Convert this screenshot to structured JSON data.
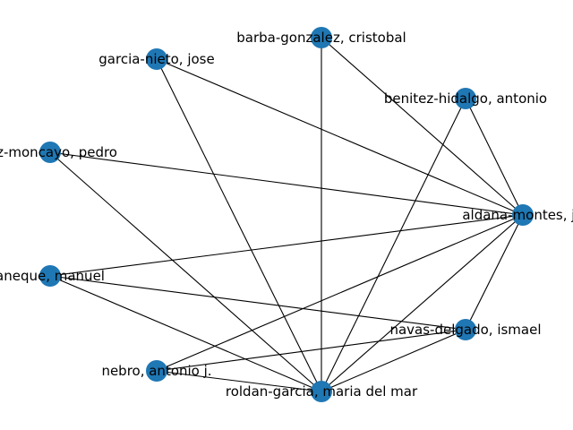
{
  "graph": {
    "node_color": "#1f77b4",
    "edge_color": "#000000",
    "nodes": [
      {
        "id": "barba",
        "label": "barba-gonzalez, cristobal"
      },
      {
        "id": "garcia",
        "label": "garcia-nieto, jose"
      },
      {
        "id": "benitez",
        "label": "benitez-hidalgo, antonio"
      },
      {
        "id": "perez",
        "label": "rez-moncayo, pedro"
      },
      {
        "id": "aldana",
        "label": "aldana-montes, jo"
      },
      {
        "id": "roldan_m",
        "label": "aneque, manuel"
      },
      {
        "id": "navas",
        "label": "navas-delgado, ismael"
      },
      {
        "id": "nebro",
        "label": "nebro, antonio j."
      },
      {
        "id": "roldan",
        "label": "roldan-garcia, maria del mar"
      }
    ],
    "edges": [
      [
        "barba",
        "aldana"
      ],
      [
        "barba",
        "roldan"
      ],
      [
        "garcia",
        "aldana"
      ],
      [
        "garcia",
        "roldan"
      ],
      [
        "benitez",
        "aldana"
      ],
      [
        "benitez",
        "roldan"
      ],
      [
        "perez",
        "aldana"
      ],
      [
        "perez",
        "roldan"
      ],
      [
        "roldan_m",
        "aldana"
      ],
      [
        "roldan_m",
        "navas"
      ],
      [
        "roldan_m",
        "roldan"
      ],
      [
        "aldana",
        "navas"
      ],
      [
        "aldana",
        "nebro"
      ],
      [
        "aldana",
        "roldan"
      ],
      [
        "navas",
        "nebro"
      ],
      [
        "navas",
        "roldan"
      ],
      [
        "nebro",
        "roldan"
      ]
    ]
  }
}
